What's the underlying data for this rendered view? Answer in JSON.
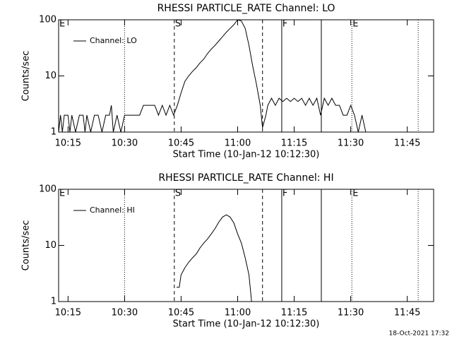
{
  "chart_data": [
    {
      "type": "line",
      "title": "RHESSI PARTICLE_RATE Channel: LO",
      "xlabel": "Start Time (10-Jan-12 10:12:30)",
      "ylabel": "Counts/sec",
      "xlim": [
        612.5,
        712
      ],
      "ylim": [
        1,
        100
      ],
      "ylog": true,
      "xticks": [
        {
          "value": 615,
          "label": "10:15"
        },
        {
          "value": 630,
          "label": "10:30"
        },
        {
          "value": 645,
          "label": "10:45"
        },
        {
          "value": 660,
          "label": "11:00"
        },
        {
          "value": 675,
          "label": "11:15"
        },
        {
          "value": 690,
          "label": "11:30"
        },
        {
          "value": 705,
          "label": "11:45"
        }
      ],
      "yticks": [
        1,
        10,
        100
      ],
      "markers": [
        {
          "x": 612.5,
          "style": "dotted",
          "label": "E"
        },
        {
          "x": 630,
          "style": "dotted"
        },
        {
          "x": 643.2,
          "style": "dashed",
          "label": "S"
        },
        {
          "x": 666.6,
          "style": "dashed"
        },
        {
          "x": 671.7,
          "style": "solid",
          "label": "F"
        },
        {
          "x": 682.2,
          "style": "solid"
        },
        {
          "x": 690.3,
          "style": "dotted",
          "label": "E"
        },
        {
          "x": 707.9,
          "style": "dotted"
        }
      ],
      "legend": "upper left",
      "x": [
        612.5,
        613,
        613.5,
        614,
        615,
        615.5,
        616,
        617,
        618,
        619,
        619.5,
        620,
        621,
        622,
        623,
        624,
        625,
        626,
        626.5,
        627,
        628,
        629,
        630,
        632,
        634,
        635,
        636,
        637,
        638,
        639,
        640,
        641,
        642,
        643,
        644,
        645,
        646,
        647,
        648,
        649,
        650,
        651,
        652,
        653,
        654,
        655,
        656,
        657,
        658,
        659,
        660,
        661,
        662,
        663,
        664,
        665,
        666,
        666.6,
        667.5,
        668,
        669,
        670,
        671,
        672,
        673,
        674,
        675,
        676,
        677,
        678,
        679,
        680,
        681,
        682,
        683,
        684,
        685,
        686,
        687,
        688,
        689,
        690,
        691,
        692,
        693,
        694,
        694.4
      ],
      "series": [
        {
          "name": "Channel: LO",
          "color": "#000000",
          "values": [
            1,
            2,
            1,
            2,
            2,
            1,
            2,
            1,
            2,
            2,
            1,
            2,
            1,
            2,
            2,
            1,
            2,
            2,
            3,
            1,
            2,
            1,
            2,
            2,
            2,
            3,
            3,
            3,
            3,
            2,
            3,
            2,
            3,
            2,
            3,
            5,
            8,
            10,
            12,
            14,
            17,
            20,
            25,
            30,
            35,
            42,
            50,
            60,
            70,
            82,
            100,
            95,
            70,
            35,
            15,
            7,
            3,
            1.2,
            2,
            3,
            4,
            3,
            4,
            3.5,
            4,
            3.5,
            4,
            3.5,
            4,
            3,
            4,
            3,
            4,
            2,
            4,
            3,
            4,
            3,
            3,
            2,
            2,
            3,
            2,
            1,
            2,
            1,
            1
          ]
        }
      ]
    },
    {
      "type": "line",
      "title": "RHESSI PARTICLE_RATE Channel: HI",
      "xlabel": "Start Time (10-Jan-12 10:12:30)",
      "ylabel": "Counts/sec",
      "xlim": [
        612.5,
        712
      ],
      "ylim": [
        1,
        100
      ],
      "ylog": true,
      "xticks": [
        {
          "value": 615,
          "label": "10:15"
        },
        {
          "value": 630,
          "label": "10:30"
        },
        {
          "value": 645,
          "label": "10:45"
        },
        {
          "value": 660,
          "label": "11:00"
        },
        {
          "value": 675,
          "label": "11:15"
        },
        {
          "value": 690,
          "label": "11:30"
        },
        {
          "value": 705,
          "label": "11:45"
        }
      ],
      "yticks": [
        1,
        10,
        100
      ],
      "markers": [
        {
          "x": 612.5,
          "style": "dotted",
          "label": "E"
        },
        {
          "x": 630,
          "style": "dotted"
        },
        {
          "x": 643.2,
          "style": "dashed",
          "label": "S"
        },
        {
          "x": 666.6,
          "style": "dashed"
        },
        {
          "x": 671.7,
          "style": "solid",
          "label": "F"
        },
        {
          "x": 682.2,
          "style": "solid"
        },
        {
          "x": 690.3,
          "style": "dotted",
          "label": "E"
        },
        {
          "x": 707.9,
          "style": "dotted"
        }
      ],
      "legend": "upper left",
      "x": [
        643.8,
        644.5,
        645,
        646,
        647,
        648,
        649,
        650,
        651,
        652,
        653,
        654,
        655,
        656,
        657,
        658,
        659,
        660,
        661,
        662,
        663,
        663.7
      ],
      "series": [
        {
          "name": "Channel: HI",
          "color": "#000000",
          "values": [
            1.8,
            1.8,
            3,
            4,
            5,
            6,
            7,
            9,
            11,
            13,
            16,
            20,
            26,
            32,
            35,
            32,
            25,
            16,
            11,
            6,
            3,
            1
          ]
        }
      ]
    }
  ],
  "footer": "18-Oct-2021 17:32"
}
